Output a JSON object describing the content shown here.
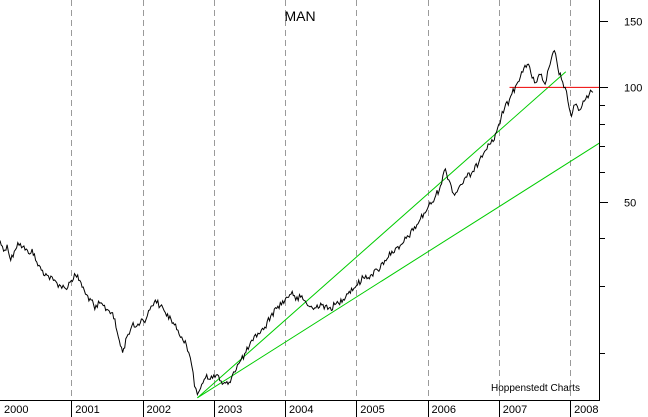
{
  "chart_data": {
    "type": "line",
    "title": "MAN",
    "watermark": "Hoppenstedt Charts",
    "y_scale": "log",
    "ylim": [
      15,
      170
    ],
    "xlim": [
      2000.0,
      2008.42
    ],
    "year_labels": [
      "2000",
      "2001",
      "2002",
      "2003",
      "2004",
      "2005",
      "2006",
      "2007",
      "2008"
    ],
    "y_ticks": [
      {
        "value": 150,
        "label": "150"
      },
      {
        "value": 100,
        "label": "100"
      },
      {
        "value": 50,
        "label": "50"
      }
    ],
    "y_minor_ticks": [
      20,
      30,
      40,
      60,
      70,
      80,
      90
    ],
    "series": [
      {
        "name": "MAN",
        "color": "#000000",
        "points": [
          [
            2000.0,
            39.5
          ],
          [
            2000.05,
            37.0
          ],
          [
            2000.1,
            38.5
          ],
          [
            2000.15,
            35.0
          ],
          [
            2000.2,
            37.0
          ],
          [
            2000.25,
            39.0
          ],
          [
            2000.32,
            38.0
          ],
          [
            2000.4,
            36.5
          ],
          [
            2000.45,
            37.5
          ],
          [
            2000.5,
            35.0
          ],
          [
            2000.58,
            33.0
          ],
          [
            2000.66,
            32.0
          ],
          [
            2000.75,
            31.0
          ],
          [
            2000.85,
            30.0
          ],
          [
            2000.92,
            29.5
          ],
          [
            2001.0,
            31.0
          ],
          [
            2001.06,
            32.0
          ],
          [
            2001.12,
            31.0
          ],
          [
            2001.2,
            28.5
          ],
          [
            2001.28,
            27.5
          ],
          [
            2001.33,
            26.0
          ],
          [
            2001.4,
            27.0
          ],
          [
            2001.5,
            26.0
          ],
          [
            2001.58,
            25.5
          ],
          [
            2001.66,
            22.0
          ],
          [
            2001.72,
            20.0
          ],
          [
            2001.78,
            22.0
          ],
          [
            2001.85,
            23.5
          ],
          [
            2001.92,
            23.5
          ],
          [
            2002.0,
            24.5
          ],
          [
            2002.05,
            24.5
          ],
          [
            2002.12,
            26.5
          ],
          [
            2002.18,
            27.5
          ],
          [
            2002.25,
            26.5
          ],
          [
            2002.32,
            25.5
          ],
          [
            2002.4,
            24.5
          ],
          [
            2002.48,
            23.0
          ],
          [
            2002.55,
            22.0
          ],
          [
            2002.6,
            21.5
          ],
          [
            2002.65,
            20.0
          ],
          [
            2002.69,
            18.5
          ],
          [
            2002.73,
            16.3
          ],
          [
            2002.77,
            15.5
          ],
          [
            2002.83,
            16.5
          ],
          [
            2002.9,
            17.5
          ],
          [
            2002.95,
            17.0
          ],
          [
            2003.05,
            17.5
          ],
          [
            2003.12,
            16.5
          ],
          [
            2003.2,
            16.5
          ],
          [
            2003.28,
            17.8
          ],
          [
            2003.35,
            18.7
          ],
          [
            2003.45,
            20.0
          ],
          [
            2003.55,
            21.5
          ],
          [
            2003.62,
            22.5
          ],
          [
            2003.7,
            23.0
          ],
          [
            2003.8,
            25.0
          ],
          [
            2003.9,
            26.5
          ],
          [
            2004.0,
            27.5
          ],
          [
            2004.1,
            29.0
          ],
          [
            2004.15,
            27.5
          ],
          [
            2004.22,
            28.0
          ],
          [
            2004.3,
            27.0
          ],
          [
            2004.4,
            26.0
          ],
          [
            2004.5,
            27.0
          ],
          [
            2004.6,
            26.0
          ],
          [
            2004.75,
            27.0
          ],
          [
            2004.9,
            29.0
          ],
          [
            2005.0,
            30.0
          ],
          [
            2005.1,
            31.5
          ],
          [
            2005.2,
            32.0
          ],
          [
            2005.3,
            33.0
          ],
          [
            2005.4,
            35.0
          ],
          [
            2005.5,
            37.0
          ],
          [
            2005.6,
            37.5
          ],
          [
            2005.7,
            40.0
          ],
          [
            2005.8,
            42.0
          ],
          [
            2005.9,
            45.0
          ],
          [
            2006.0,
            48.0
          ],
          [
            2006.1,
            51.0
          ],
          [
            2006.18,
            55.0
          ],
          [
            2006.25,
            61.0
          ],
          [
            2006.3,
            57.0
          ],
          [
            2006.38,
            52.0
          ],
          [
            2006.45,
            55.0
          ],
          [
            2006.55,
            58.0
          ],
          [
            2006.65,
            60.0
          ],
          [
            2006.75,
            66.0
          ],
          [
            2006.85,
            71.0
          ],
          [
            2006.92,
            72.0
          ],
          [
            2007.0,
            80.0
          ],
          [
            2007.08,
            88.0
          ],
          [
            2007.15,
            93.0
          ],
          [
            2007.25,
            102.0
          ],
          [
            2007.32,
            110.0
          ],
          [
            2007.4,
            115.0
          ],
          [
            2007.45,
            109.0
          ],
          [
            2007.52,
            103.0
          ],
          [
            2007.58,
            108.0
          ],
          [
            2007.65,
            102.0
          ],
          [
            2007.72,
            115.0
          ],
          [
            2007.78,
            125.0
          ],
          [
            2007.83,
            112.0
          ],
          [
            2007.88,
            105.0
          ],
          [
            2007.93,
            100.0
          ],
          [
            2007.97,
            92.0
          ],
          [
            2008.02,
            84.0
          ],
          [
            2008.07,
            90.0
          ],
          [
            2008.12,
            87.0
          ],
          [
            2008.2,
            92.0
          ],
          [
            2008.27,
            96.0
          ],
          [
            2008.32,
            97.0
          ]
        ]
      }
    ],
    "trend_lines": [
      {
        "name": "uptrend-line-steep",
        "color": "#00cc00",
        "from": [
          2002.77,
          15.2
        ],
        "to": [
          2007.94,
          110.0
        ]
      },
      {
        "name": "uptrend-line-shallow",
        "color": "#00cc00",
        "from": [
          2002.77,
          15.2
        ],
        "to": [
          2008.42,
          71.5
        ]
      },
      {
        "name": "resistance-line",
        "color": "#ee0000",
        "from": [
          2007.15,
          100.0
        ],
        "to": [
          2008.42,
          100.0
        ]
      }
    ]
  }
}
